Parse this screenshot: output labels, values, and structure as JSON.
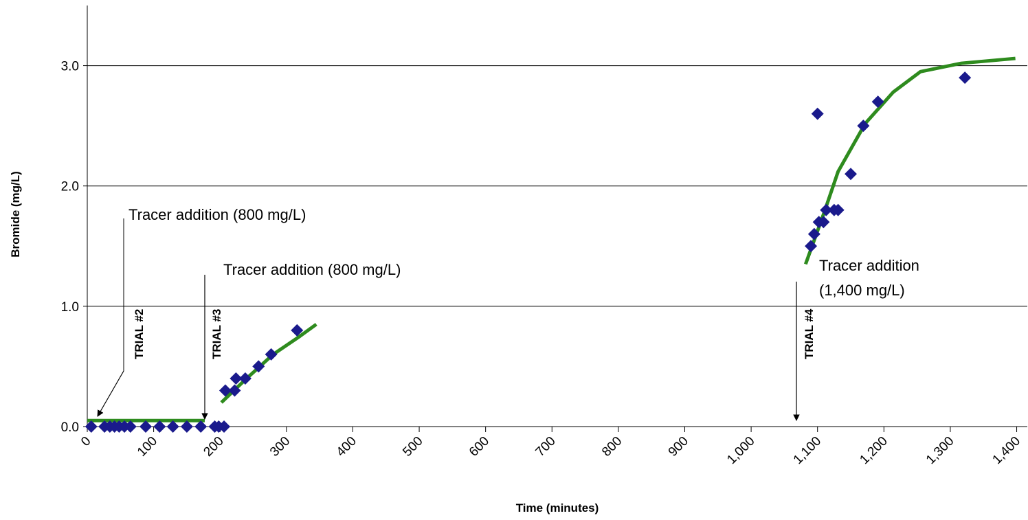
{
  "chart_data": {
    "type": "scatter",
    "x_label": "Time (minutes)",
    "y_label": "Bromide (mg/L)",
    "xlim": [
      0,
      1416
    ],
    "ylim": [
      0,
      3.5
    ],
    "xticks": [
      0,
      100,
      200,
      300,
      400,
      500,
      600,
      700,
      800,
      900,
      {
        "value": 1000,
        "label": "1,000"
      },
      {
        "value": 1100,
        "label": "1,100"
      },
      {
        "value": 1200,
        "label": "1,200"
      },
      {
        "value": 1300,
        "label": "1,300"
      },
      {
        "value": 1400,
        "label": "1,400"
      }
    ],
    "yticks": [
      {
        "value": 0,
        "label": "0.0"
      },
      {
        "value": 1,
        "label": "1.0"
      },
      {
        "value": 2,
        "label": "2.0"
      },
      {
        "value": 3,
        "label": "3.0"
      }
    ],
    "grid": true,
    "series": [
      {
        "color": "#1a1a8c",
        "marker": "diamond",
        "x": [
          6,
          26,
          34,
          41,
          48,
          56,
          65,
          88,
          109,
          129,
          150,
          171,
          192,
          198,
          206,
          208,
          222,
          224,
          238,
          258,
          277,
          316,
          1090,
          1095,
          1102,
          1109,
          1113,
          1125,
          1131,
          1100,
          1150,
          1169,
          1191,
          1322
        ],
        "values": [
          0,
          0,
          0,
          0,
          0,
          0,
          0,
          0,
          0,
          0,
          0,
          0,
          0,
          0,
          0,
          0.3,
          0.3,
          0.4,
          0.4,
          0.5,
          0.6,
          0.8,
          1.5,
          1.6,
          1.7,
          1.7,
          1.8,
          1.8,
          1.8,
          2.6,
          2.1,
          2.5,
          2.7,
          2.9
        ]
      }
    ],
    "fit_lines": [
      {
        "color": "#2e8b1e",
        "x": [
          0,
          177
        ],
        "values": [
          0.05,
          0.05
        ]
      },
      {
        "color": "#2e8b1e",
        "x": [
          202,
          240,
          280,
          320,
          345
        ],
        "values": [
          0.2,
          0.4,
          0.6,
          0.75,
          0.85
        ]
      },
      {
        "color": "#2e8b1e",
        "x": [
          1082,
          1110,
          1131,
          1172,
          1214,
          1255,
          1317,
          1398
        ],
        "values": [
          1.35,
          1.78,
          2.12,
          2.52,
          2.78,
          2.95,
          3.02,
          3.06
        ]
      }
    ],
    "annotations": [
      "Tracer addition (800 mg/L)",
      "Tracer addition (800 mg/L)",
      "Tracer addition",
      "(1,400 mg/L)"
    ],
    "trial_labels": [
      "TRIAL #2",
      "TRIAL #3",
      "TRIAL #4"
    ]
  }
}
